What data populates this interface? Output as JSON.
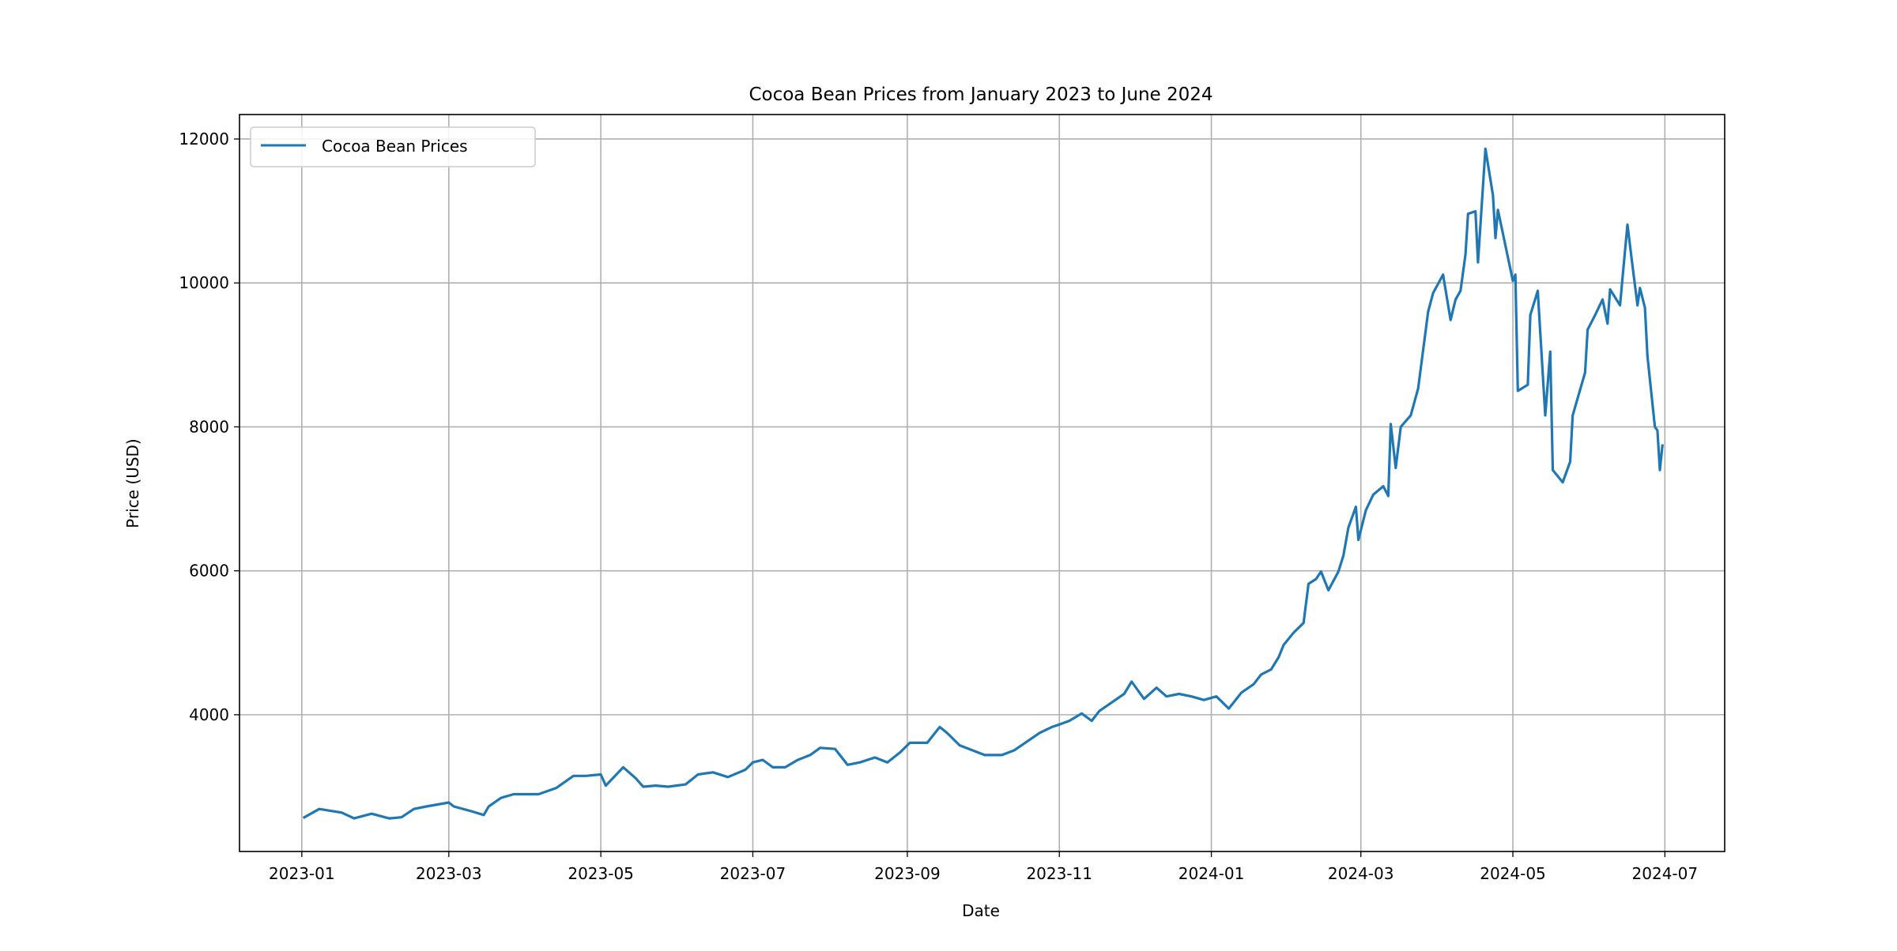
{
  "chart_data": {
    "type": "line",
    "title": "Cocoa Bean Prices from January 2023 to June 2024",
    "xlabel": "Date",
    "ylabel": "Price (USD)",
    "xlim": [
      "2022-12-07",
      "2024-07-25"
    ],
    "ylim": [
      2100,
      12340
    ],
    "grid": true,
    "legend_position": "top-left",
    "x_ticks": [
      "2023-01",
      "2023-03",
      "2023-05",
      "2023-07",
      "2023-09",
      "2023-11",
      "2024-01",
      "2024-03",
      "2024-05",
      "2024-07"
    ],
    "y_ticks": [
      4000,
      6000,
      8000,
      10000,
      12000
    ],
    "series": [
      {
        "name": "Cocoa Bean Prices",
        "color": "#1f77b4",
        "x": [
          "2023-01-02",
          "2023-01-08",
          "2023-01-17",
          "2023-01-22",
          "2023-01-29",
          "2023-02-05",
          "2023-02-10",
          "2023-02-15",
          "2023-02-20",
          "2023-03-01",
          "2023-03-03",
          "2023-03-10",
          "2023-03-15",
          "2023-03-17",
          "2023-03-22",
          "2023-03-27",
          "2023-04-01",
          "2023-04-06",
          "2023-04-13",
          "2023-04-20",
          "2023-04-25",
          "2023-05-01",
          "2023-05-03",
          "2023-05-10",
          "2023-05-15",
          "2023-05-18",
          "2023-05-23",
          "2023-05-28",
          "2023-06-04",
          "2023-06-09",
          "2023-06-15",
          "2023-06-21",
          "2023-06-28",
          "2023-07-01",
          "2023-07-05",
          "2023-07-09",
          "2023-07-14",
          "2023-07-19",
          "2023-07-24",
          "2023-07-28",
          "2023-08-03",
          "2023-08-08",
          "2023-08-13",
          "2023-08-19",
          "2023-08-24",
          "2023-08-29",
          "2023-09-02",
          "2023-09-09",
          "2023-09-14",
          "2023-09-17",
          "2023-09-22",
          "2023-09-27",
          "2023-10-02",
          "2023-10-09",
          "2023-10-14",
          "2023-10-19",
          "2023-10-24",
          "2023-10-29",
          "2023-11-01",
          "2023-11-05",
          "2023-11-10",
          "2023-11-14",
          "2023-11-17",
          "2023-11-22",
          "2023-11-27",
          "2023-11-30",
          "2023-12-05",
          "2023-12-10",
          "2023-12-14",
          "2023-12-19",
          "2023-12-24",
          "2023-12-29",
          "2024-01-03",
          "2024-01-08",
          "2024-01-13",
          "2024-01-18",
          "2024-01-21",
          "2024-01-25",
          "2024-01-28",
          "2024-01-30",
          "2024-02-03",
          "2024-02-07",
          "2024-02-09",
          "2024-02-12",
          "2024-02-14",
          "2024-02-17",
          "2024-02-21",
          "2024-02-23",
          "2024-02-25",
          "2024-02-28",
          "2024-02-29",
          "2024-03-03",
          "2024-03-06",
          "2024-03-10",
          "2024-03-12",
          "2024-03-13",
          "2024-03-15",
          "2024-03-17",
          "2024-03-21",
          "2024-03-24",
          "2024-03-28",
          "2024-03-30",
          "2024-04-03",
          "2024-04-06",
          "2024-04-08",
          "2024-04-10",
          "2024-04-12",
          "2024-04-13",
          "2024-04-16",
          "2024-04-17",
          "2024-04-20",
          "2024-04-23",
          "2024-04-24",
          "2024-04-25",
          "2024-05-01",
          "2024-05-02",
          "2024-05-03",
          "2024-05-07",
          "2024-05-08",
          "2024-05-11",
          "2024-05-14",
          "2024-05-16",
          "2024-05-17",
          "2024-05-21",
          "2024-05-24",
          "2024-05-25",
          "2024-05-30",
          "2024-05-31",
          "2024-06-03",
          "2024-06-06",
          "2024-06-08",
          "2024-06-09",
          "2024-06-13",
          "2024-06-14",
          "2024-06-16",
          "2024-06-18",
          "2024-06-20",
          "2024-06-21",
          "2024-06-23",
          "2024-06-24",
          "2024-06-27",
          "2024-06-28",
          "2024-06-29",
          "2024-06-30"
        ],
        "values": [
          2574,
          2690,
          2640,
          2560,
          2625,
          2560,
          2575,
          2690,
          2726,
          2780,
          2726,
          2660,
          2607,
          2726,
          2845,
          2896,
          2896,
          2896,
          2980,
          3150,
          3150,
          3170,
          3015,
          3270,
          3117,
          3000,
          3015,
          3000,
          3032,
          3170,
          3200,
          3134,
          3236,
          3338,
          3372,
          3270,
          3270,
          3372,
          3440,
          3540,
          3525,
          3304,
          3338,
          3406,
          3338,
          3474,
          3610,
          3610,
          3830,
          3745,
          3575,
          3508,
          3440,
          3440,
          3508,
          3627,
          3745,
          3830,
          3864,
          3915,
          4017,
          3915,
          4050,
          4170,
          4290,
          4460,
          4220,
          4375,
          4255,
          4290,
          4255,
          4205,
          4255,
          4085,
          4305,
          4425,
          4560,
          4630,
          4800,
          4970,
          5140,
          5275,
          5820,
          5885,
          5990,
          5730,
          5990,
          6210,
          6600,
          6890,
          6430,
          6840,
          7060,
          7175,
          7040,
          8040,
          7430,
          8000,
          8160,
          8535,
          9600,
          9860,
          10115,
          9485,
          9770,
          9890,
          10400,
          10960,
          10995,
          10285,
          11865,
          11220,
          10625,
          11015,
          10030,
          10115,
          8500,
          8585,
          9555,
          9890,
          8160,
          9045,
          7400,
          7230,
          7515,
          8160,
          8755,
          9350,
          9555,
          9770,
          9435,
          9910,
          9690,
          10065,
          10810,
          10235,
          9690,
          9930,
          9655,
          8980,
          8000,
          7950,
          7400,
          7740
        ]
      }
    ]
  }
}
